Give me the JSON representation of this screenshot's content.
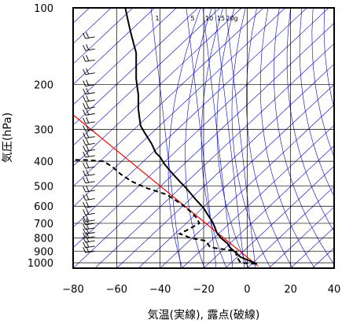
{
  "chart_data": {
    "type": "line",
    "title": "",
    "xlabel": "気温(実線), 露点(破線)",
    "ylabel": "気圧(hPa)",
    "xlim": [
      -80,
      40
    ],
    "ylim": [
      1050,
      100
    ],
    "y_scale": "log",
    "grid": true,
    "x_ticks": [
      -80,
      -60,
      -40,
      -20,
      0,
      20,
      40
    ],
    "x_tick_labels": [
      "−80",
      "−60",
      "−40",
      "−20",
      "0",
      "20",
      "40"
    ],
    "y_ticks": [
      100,
      200,
      300,
      400,
      500,
      600,
      700,
      800,
      900,
      1000
    ],
    "y_tick_labels": [
      "100",
      "200",
      "300",
      "400",
      "500",
      "600",
      "700",
      "800",
      "900",
      "1000"
    ],
    "mixing_ratio_labels": [
      "1",
      "5",
      "10",
      "15",
      "20g"
    ],
    "colors": {
      "temperature": "#000000",
      "dewpoint": "#000000",
      "isotherm": "#0000cc",
      "adiabat": "#0000cc",
      "mixing_ratio": "#0000cc",
      "parcel_path": "#ff0000",
      "grid": "#000000",
      "wind_barb": "#000000"
    },
    "series": [
      {
        "name": "気温",
        "style": "solid",
        "points": [
          {
            "t": 4.5,
            "p": 1010
          },
          {
            "t": 2,
            "p": 990
          },
          {
            "t": -3,
            "p": 950
          },
          {
            "t": -6,
            "p": 900
          },
          {
            "t": -8,
            "p": 870
          },
          {
            "t": -9,
            "p": 840
          },
          {
            "t": -12,
            "p": 800
          },
          {
            "t": -14,
            "p": 760
          },
          {
            "t": -15,
            "p": 720
          },
          {
            "t": -16,
            "p": 690
          },
          {
            "t": -18,
            "p": 650
          },
          {
            "t": -20,
            "p": 610
          },
          {
            "t": -24,
            "p": 560
          },
          {
            "t": -28,
            "p": 510
          },
          {
            "t": -31,
            "p": 480
          },
          {
            "t": -35,
            "p": 440
          },
          {
            "t": -38,
            "p": 410
          },
          {
            "t": -40,
            "p": 385
          },
          {
            "t": -42,
            "p": 370
          },
          {
            "t": -44,
            "p": 340
          },
          {
            "t": -47,
            "p": 310
          },
          {
            "t": -49,
            "p": 290
          },
          {
            "t": -49.5,
            "p": 270
          },
          {
            "t": -50,
            "p": 250
          },
          {
            "t": -50,
            "p": 220
          },
          {
            "t": -51,
            "p": 190
          },
          {
            "t": -51,
            "p": 170
          },
          {
            "t": -51,
            "p": 150
          },
          {
            "t": -52,
            "p": 140
          },
          {
            "t": -53,
            "p": 130
          },
          {
            "t": -54,
            "p": 120
          },
          {
            "t": -55,
            "p": 110
          },
          {
            "t": -56,
            "p": 100
          }
        ]
      },
      {
        "name": "露点",
        "style": "dashed",
        "points": [
          {
            "t": 4,
            "p": 1010
          },
          {
            "t": -3,
            "p": 1000
          },
          {
            "t": -4,
            "p": 970
          },
          {
            "t": -5,
            "p": 940
          },
          {
            "t": -5,
            "p": 900
          },
          {
            "t": -9,
            "p": 890
          },
          {
            "t": -13,
            "p": 880
          },
          {
            "t": -17,
            "p": 870
          },
          {
            "t": -19,
            "p": 820
          },
          {
            "t": -26,
            "p": 800
          },
          {
            "t": -29,
            "p": 780
          },
          {
            "t": -31,
            "p": 770
          },
          {
            "t": -27,
            "p": 740
          },
          {
            "t": -22,
            "p": 700
          },
          {
            "t": -23,
            "p": 670
          },
          {
            "t": -26,
            "p": 630
          },
          {
            "t": -30,
            "p": 590
          },
          {
            "t": -37,
            "p": 540
          },
          {
            "t": -46,
            "p": 510
          },
          {
            "t": -53,
            "p": 480
          },
          {
            "t": -58,
            "p": 450
          },
          {
            "t": -62,
            "p": 420
          },
          {
            "t": -66,
            "p": 400
          },
          {
            "t": -74,
            "p": 395
          },
          {
            "t": -80,
            "p": 395
          }
        ]
      },
      {
        "name": "parcel",
        "style": "solid-red",
        "points": [
          {
            "t": 5,
            "p": 1030
          },
          {
            "t": -80,
            "p": 263
          }
        ]
      }
    ],
    "wind_barbs_pressure": [
      130,
      145,
      160,
      180,
      200,
      215,
      230,
      245,
      260,
      280,
      300,
      320,
      340,
      360,
      380,
      420,
      450,
      480,
      520,
      560,
      600,
      640,
      680,
      700,
      730,
      760,
      790,
      820,
      860,
      900
    ]
  }
}
